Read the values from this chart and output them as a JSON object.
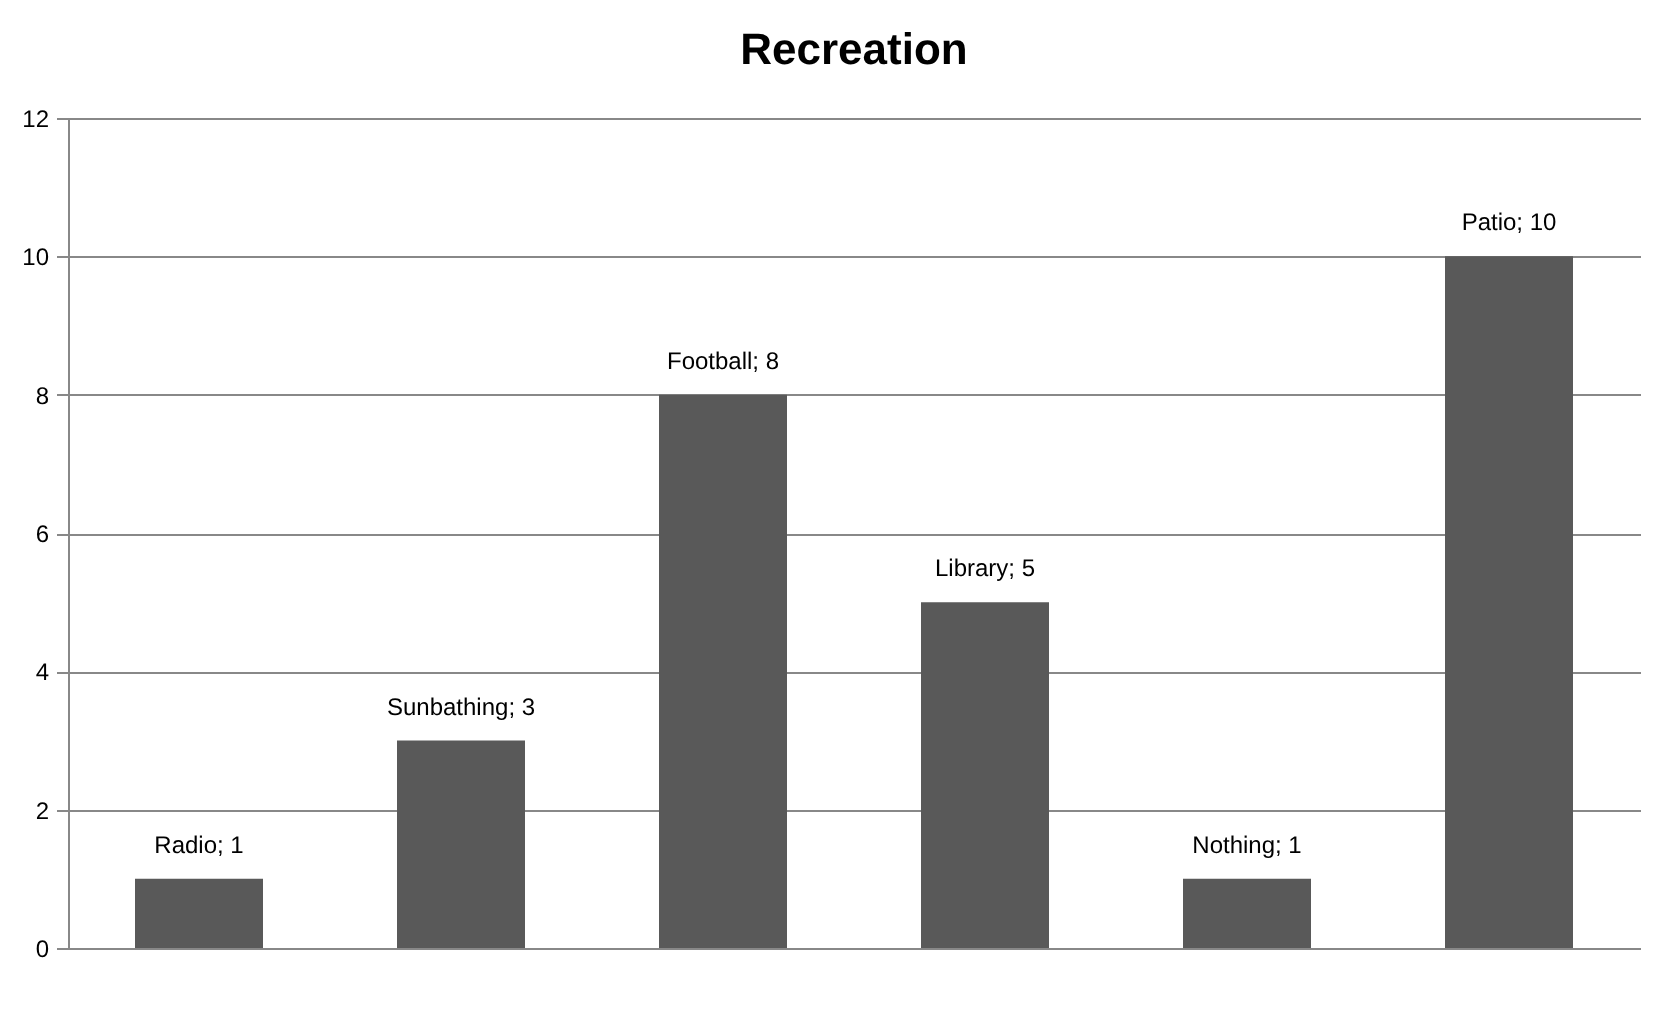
{
  "chart_data": {
    "type": "bar",
    "title": "Recreation",
    "categories": [
      null,
      null,
      null,
      null,
      null,
      null
    ],
    "values": [
      1,
      3,
      8,
      5,
      1,
      10
    ],
    "value_labels": [
      "Radio; 1",
      "Sunbathing; 3",
      "Football; 8",
      "Library; 5",
      "Nothing; 1",
      "Patio; 10"
    ],
    "color": "#595959",
    "ylim": [
      0,
      12
    ],
    "yticks": [
      0,
      2,
      4,
      6,
      8,
      10,
      12
    ],
    "grid": "y"
  }
}
